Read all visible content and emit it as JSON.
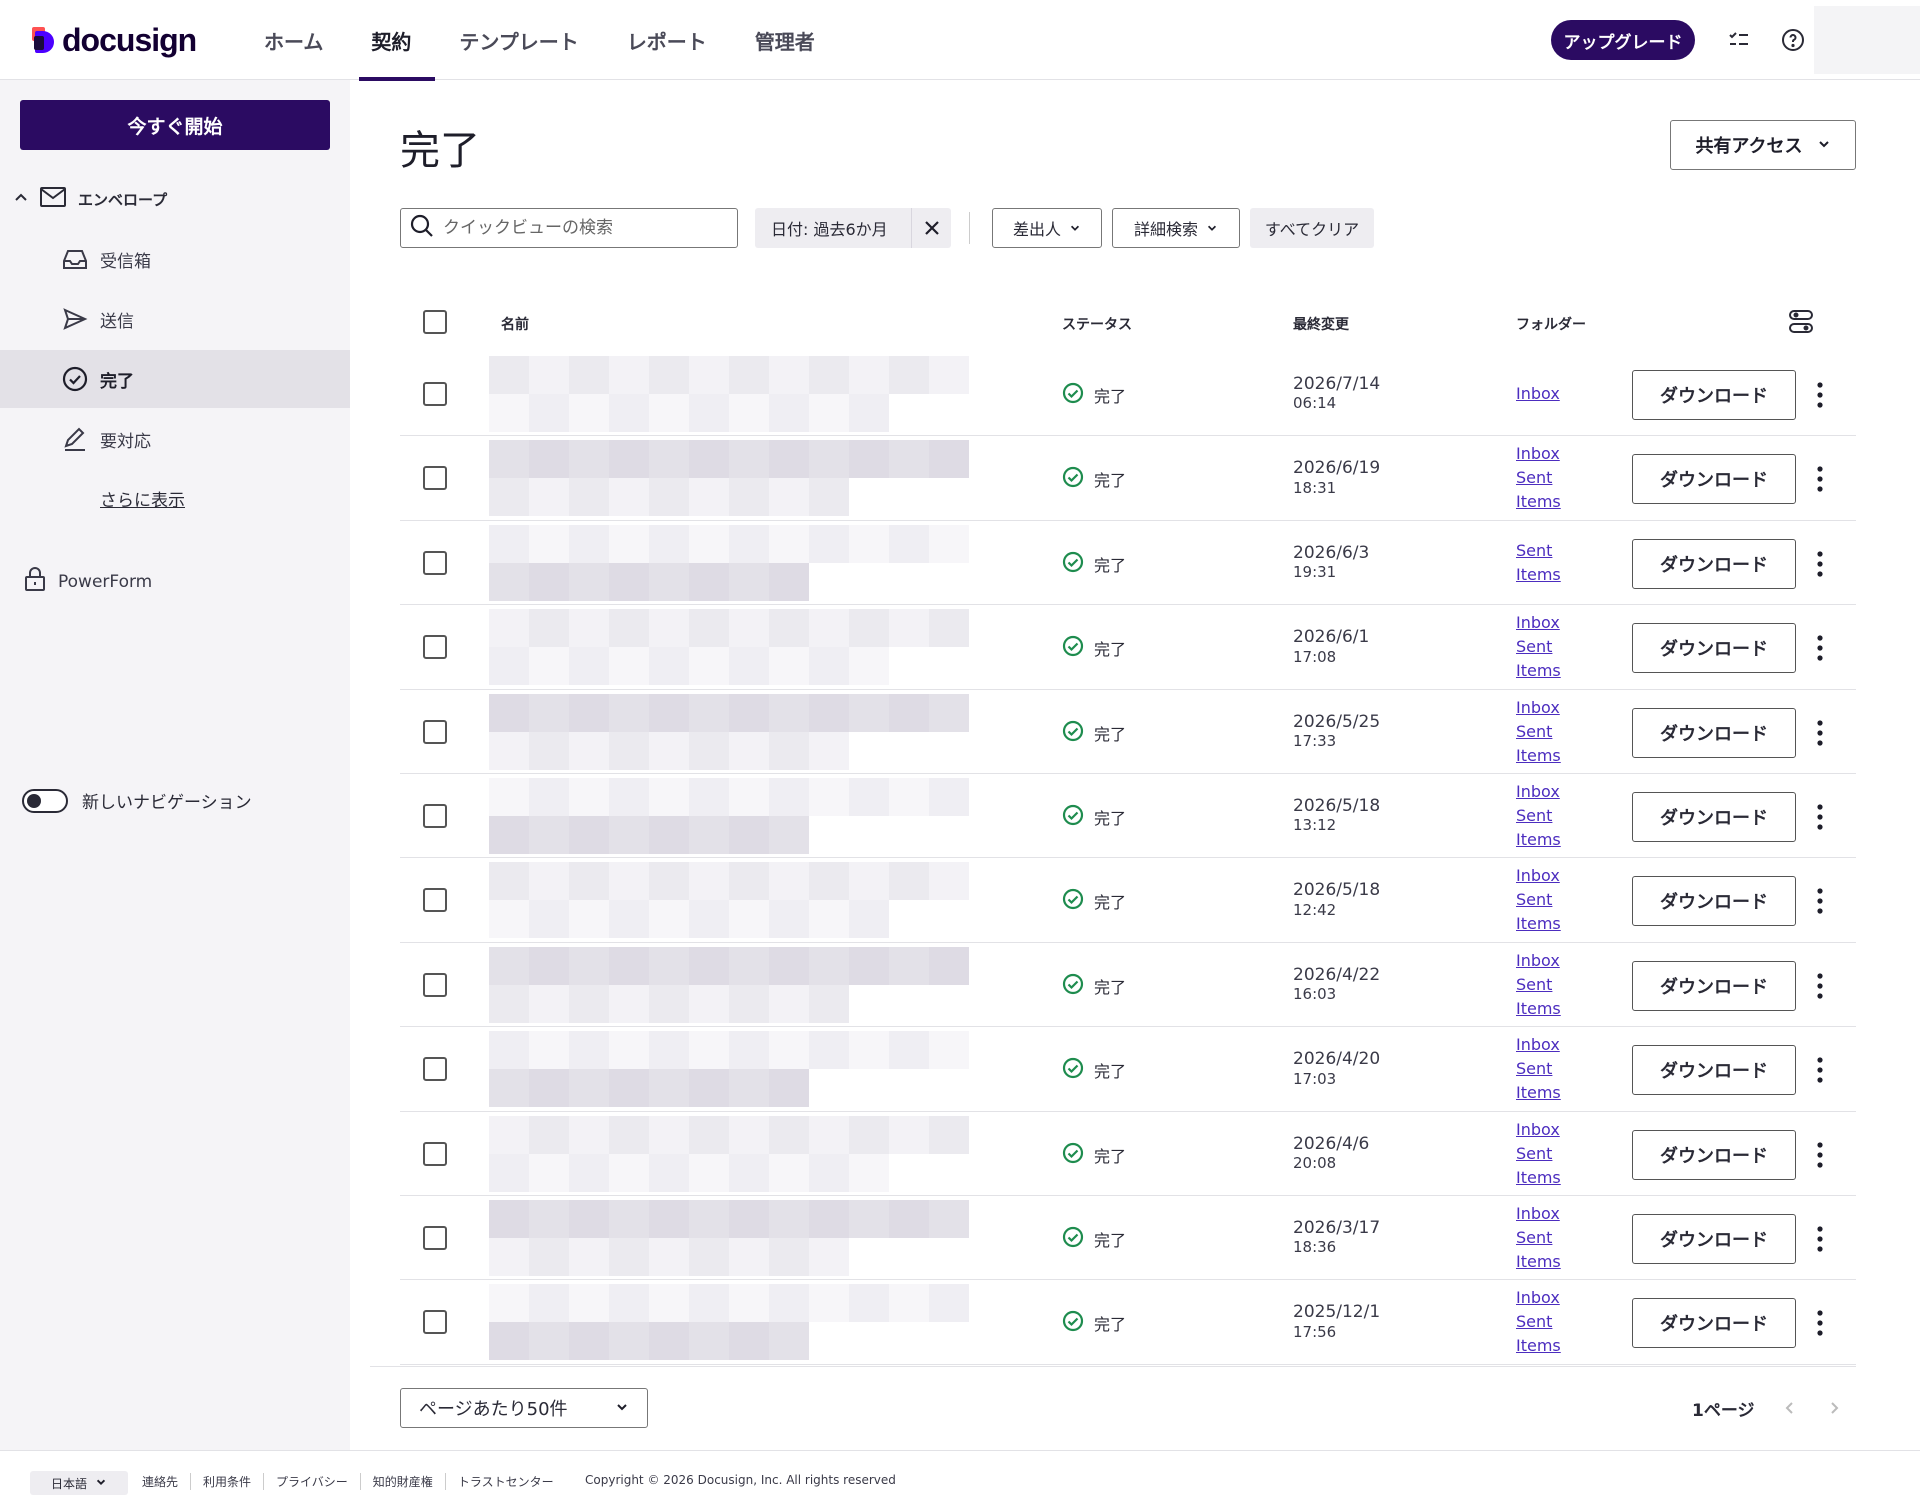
{
  "header": {
    "logo_text": "docusign",
    "tabs": [
      {
        "label": "ホーム"
      },
      {
        "label": "契約"
      },
      {
        "label": "テンプレート"
      },
      {
        "label": "レポート"
      },
      {
        "label": "管理者"
      }
    ],
    "active_tab": "契約",
    "upgrade_label": "アップグレード",
    "brand_color": "#2b0b62"
  },
  "sidebar": {
    "start_button": "今すぐ開始",
    "envelopes_label": "エンベロープ",
    "items": [
      {
        "label": "受信箱",
        "icon": "inbox-tray-icon"
      },
      {
        "label": "送信",
        "icon": "send-icon"
      },
      {
        "label": "完了",
        "icon": "check-circle-icon"
      },
      {
        "label": "要対応",
        "icon": "pen-icon"
      }
    ],
    "active_item": "完了",
    "more_link": "さらに表示",
    "powerform_label": "PowerForm",
    "new_nav_label": "新しいナビゲーション",
    "new_nav_enabled": false
  },
  "main": {
    "title": "完了",
    "share_button": "共有アクセス",
    "search_placeholder": "クイックビューの検索",
    "date_filter": "日付: 過去6か月",
    "sender_dropdown": "差出人",
    "advanced_dropdown": "詳細検索",
    "clear_all": "すべてクリア"
  },
  "table": {
    "columns": {
      "name": "名前",
      "status": "ステータス",
      "modified": "最終変更",
      "folder": "フォルダー"
    },
    "download_label": "ダウンロード",
    "rows": [
      {
        "status": "完了",
        "date": "2026/7/14",
        "time": "06:14",
        "folders": [
          "Inbox"
        ]
      },
      {
        "status": "完了",
        "date": "2026/6/19",
        "time": "18:31",
        "folders": [
          "Inbox",
          "Sent",
          "Items"
        ]
      },
      {
        "status": "完了",
        "date": "2026/6/3",
        "time": "19:31",
        "folders": [
          "Sent",
          "Items"
        ]
      },
      {
        "status": "完了",
        "date": "2026/6/1",
        "time": "17:08",
        "folders": [
          "Inbox",
          "Sent",
          "Items"
        ]
      },
      {
        "status": "完了",
        "date": "2026/5/25",
        "time": "17:33",
        "folders": [
          "Inbox",
          "Sent",
          "Items"
        ]
      },
      {
        "status": "完了",
        "date": "2026/5/18",
        "time": "13:12",
        "folders": [
          "Inbox",
          "Sent",
          "Items"
        ]
      },
      {
        "status": "完了",
        "date": "2026/5/18",
        "time": "12:42",
        "folders": [
          "Inbox",
          "Sent",
          "Items"
        ]
      },
      {
        "status": "完了",
        "date": "2026/4/22",
        "time": "16:03",
        "folders": [
          "Inbox",
          "Sent",
          "Items"
        ]
      },
      {
        "status": "完了",
        "date": "2026/4/20",
        "time": "17:03",
        "folders": [
          "Inbox",
          "Sent",
          "Items"
        ]
      },
      {
        "status": "完了",
        "date": "2026/4/6",
        "time": "20:08",
        "folders": [
          "Inbox",
          "Sent",
          "Items"
        ]
      },
      {
        "status": "完了",
        "date": "2026/3/17",
        "time": "18:36",
        "folders": [
          "Inbox",
          "Sent",
          "Items"
        ]
      },
      {
        "status": "完了",
        "date": "2025/12/1",
        "time": "17:56",
        "folders": [
          "Inbox",
          "Sent",
          "Items"
        ]
      }
    ]
  },
  "pagination": {
    "per_page": "ページあたり50件",
    "page_label": "1ページ"
  },
  "footer": {
    "language": "日本語",
    "links": [
      "連絡先",
      "利用条件",
      "プライバシー",
      "知的財産権",
      "トラストセンター"
    ],
    "copyright": "Copyright © 2026 Docusign, Inc. All rights reserved"
  },
  "colors": {
    "status_green": "#1e8c4e",
    "link_purple": "#4c2dbf"
  }
}
